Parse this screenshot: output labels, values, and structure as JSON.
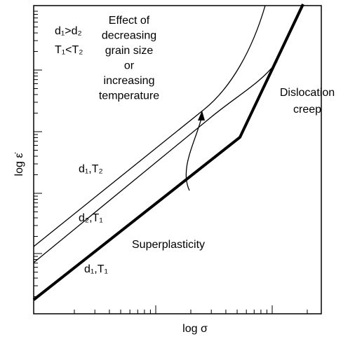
{
  "labels": {
    "condition_d": "d₁>d₂",
    "condition_T": "T₁<T₂",
    "effect": [
      "Effect of",
      "decreasing",
      "grain size",
      "or",
      "increasing",
      "temperature"
    ],
    "dislocation": [
      "Dislocation",
      "creep"
    ],
    "curve_d1T2": "d₁,T₂",
    "curve_d2T1": "d₂,T₁",
    "curve_d1T1": "d₁,T₁",
    "superplasticity": "Superplasticity",
    "x_axis": "log σ",
    "y_axis": "log ε̇"
  }
}
